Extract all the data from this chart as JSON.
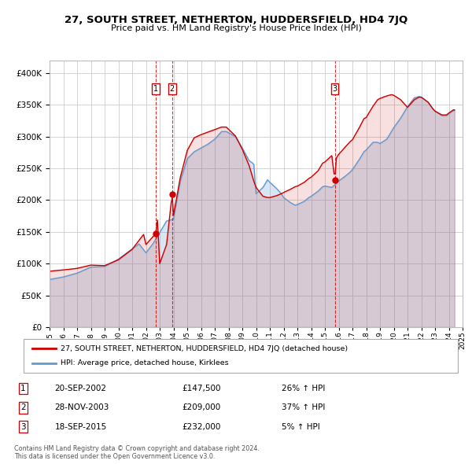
{
  "title": "27, SOUTH STREET, NETHERTON, HUDDERSFIELD, HD4 7JQ",
  "subtitle": "Price paid vs. HM Land Registry's House Price Index (HPI)",
  "legend_line1": "27, SOUTH STREET, NETHERTON, HUDDERSFIELD, HD4 7JQ (detached house)",
  "legend_line2": "HPI: Average price, detached house, Kirklees",
  "transactions": [
    {
      "num": 1,
      "date": "20-SEP-2002",
      "price": 147500,
      "hpi_change": "26% ↑ HPI",
      "year": 2002.72
    },
    {
      "num": 2,
      "date": "28-NOV-2003",
      "price": 209000,
      "hpi_change": "37% ↑ HPI",
      "year": 2003.9
    },
    {
      "num": 3,
      "date": "18-SEP-2015",
      "price": 232000,
      "hpi_change": "5% ↑ HPI",
      "year": 2015.72
    }
  ],
  "footnote1": "Contains HM Land Registry data © Crown copyright and database right 2024.",
  "footnote2": "This data is licensed under the Open Government Licence v3.0.",
  "red_color": "#cc0000",
  "blue_color": "#6699cc",
  "grid_color": "#cccccc",
  "background_color": "#ffffff",
  "ylim": [
    0,
    420000
  ],
  "yticks": [
    0,
    50000,
    100000,
    150000,
    200000,
    250000,
    300000,
    350000,
    400000
  ]
}
